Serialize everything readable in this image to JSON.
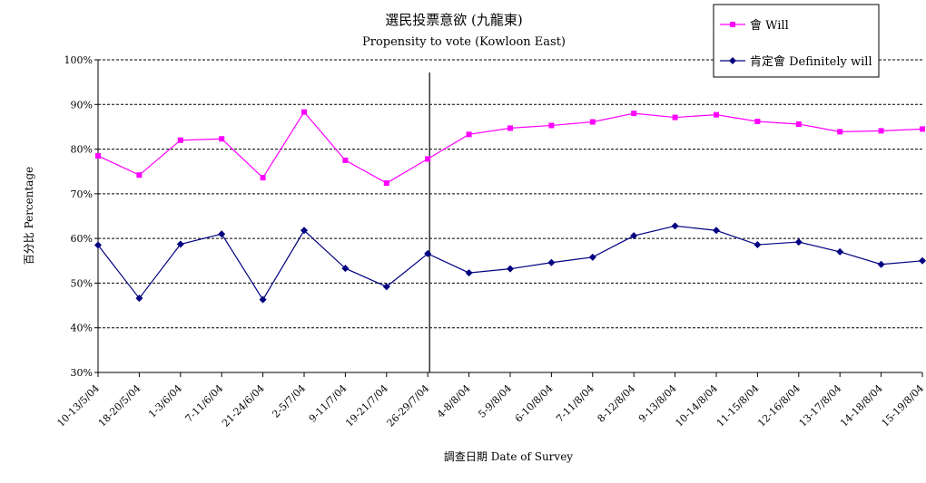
{
  "chart_data": {
    "type": "line",
    "title": "選民投票意欲 (九龍東)",
    "subtitle": "Propensity to vote (Kowloon East)",
    "xlabel": "調查日期 Date of Survey",
    "ylabel": "百分比 Percentage",
    "ylim": [
      30,
      100
    ],
    "yticks": [
      "30%",
      "40%",
      "50%",
      "60%",
      "70%",
      "80%",
      "90%",
      "100%"
    ],
    "grid": true,
    "legend_position": "top-right",
    "categories": [
      "10-13/5/04",
      "18-20/5/04",
      "1-3/6/04",
      "7-11/6/04",
      "21-24/6/04",
      "2-5/7/04",
      "9-11/7/04",
      "19-21/7/04",
      "26-29/7/04",
      "4-8/8/04",
      "5-9/8/04",
      "6-10/8/04",
      "7-11/8/04",
      "8-12/8/04",
      "9-13/8/04",
      "10-14/8/04",
      "11-15/8/04",
      "12-16/8/04",
      "13-17/8/04",
      "14-18/8/04",
      "15-19/8/04"
    ],
    "series": [
      {
        "name": "會 Will",
        "color": "#ff00ff",
        "marker": "square",
        "values": [
          78.5,
          74.2,
          82,
          82.3,
          73.6,
          88.3,
          77.5,
          72.4,
          77.8,
          83.3,
          84.7,
          85.3,
          86.1,
          88,
          87.1,
          87.7,
          86.2,
          85.6,
          83.9,
          84.1,
          84.5
        ]
      },
      {
        "name": "肯定會 Definitely will",
        "color": "#000080",
        "marker": "diamond",
        "values": [
          58.5,
          46.6,
          58.7,
          61,
          46.3,
          61.8,
          53.3,
          49.2,
          56.6,
          52.3,
          53.2,
          54.6,
          55.8,
          60.6,
          62.8,
          61.8,
          58.6,
          59.2,
          57,
          54.2,
          55
        ]
      }
    ],
    "vertical_marker_after": "26-29/7/04"
  }
}
